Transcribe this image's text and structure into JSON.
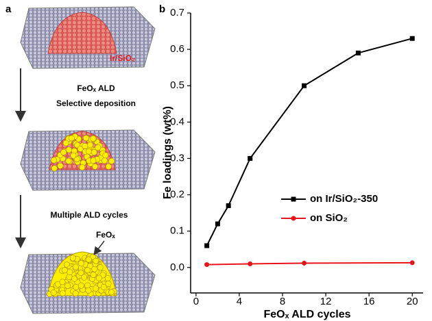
{
  "panel_a": {
    "label": "a",
    "support_label": "Ir/SiO₂",
    "step_1": [
      "FeOₓ ALD",
      "Selective deposition"
    ],
    "step_2": "Multiple ALD cycles",
    "callout": "FeOₓ"
  },
  "chart_data": {
    "type": "line",
    "panel_label": "b",
    "x_label": "FeOₓ ALD cycles",
    "y_label": "Fe loadings (wt%)",
    "series": [
      {
        "name": "on Ir/SiO₂-350",
        "color": "#000000",
        "marker": "square",
        "x": [
          1,
          2,
          3,
          5,
          10,
          15,
          20
        ],
        "values": [
          0.06,
          0.12,
          0.17,
          0.3,
          0.5,
          0.59,
          0.63
        ]
      },
      {
        "name": "on SiO₂",
        "color": "#e8141b",
        "marker": "circle",
        "x": [
          1,
          5,
          10,
          20
        ],
        "values": [
          0.008,
          0.01,
          0.012,
          0.013
        ]
      }
    ],
    "xlim": [
      -0.5,
      21
    ],
    "xticks": [
      0,
      4,
      8,
      12,
      16,
      20
    ],
    "ylim": [
      -0.07,
      0.7
    ],
    "yticks": [
      {
        "value": 0,
        "label": "0.0"
      },
      0.1,
      0.2,
      0.3,
      0.4,
      0.5,
      0.6,
      0.7
    ],
    "grid": false
  }
}
